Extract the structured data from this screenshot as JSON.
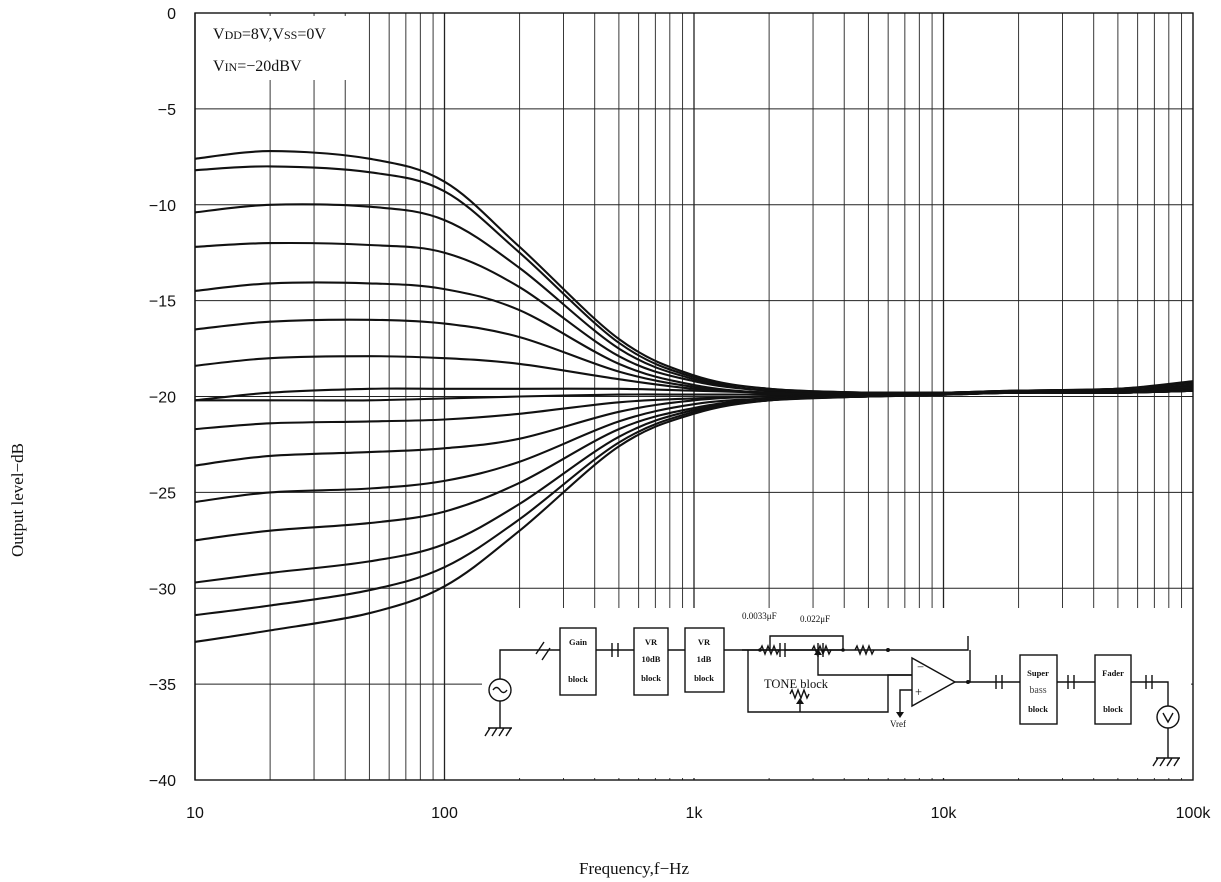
{
  "chart_data": {
    "type": "line",
    "title": "",
    "xlabel": "Frequency,f−Hz",
    "ylabel": "Output level−dB",
    "xscale": "log",
    "xlim": [
      10,
      100000
    ],
    "ylim": [
      -40,
      0
    ],
    "x_ticks": [
      "10",
      "100",
      "1k",
      "10k",
      "100k"
    ],
    "y_ticks": [
      "0",
      "−5",
      "−10",
      "−15",
      "−20",
      "−25",
      "−30",
      "−35",
      "−40"
    ],
    "grid": true,
    "annotations": {
      "vdd_prefix": "V",
      "vdd_sub": "DD",
      "vdd_mid": "=8V,V",
      "vss_sub": "SS",
      "vss_suffix": "=0V",
      "vin_prefix": "V",
      "vin_sub": "IN",
      "vin_suffix": "=−20dBV"
    },
    "x": [
      10,
      20,
      50,
      100,
      200,
      500,
      1000,
      2000,
      5000,
      10000,
      20000,
      50000,
      100000
    ],
    "series": [
      {
        "values": [
          -7.6,
          -7.2,
          -7.6,
          -8.8,
          -12.2,
          -17.0,
          -18.9,
          -19.6,
          -19.8,
          -19.8,
          -19.7,
          -19.6,
          -19.2
        ]
      },
      {
        "values": [
          -8.2,
          -8.0,
          -8.3,
          -9.3,
          -12.5,
          -17.2,
          -19.0,
          -19.6,
          -19.8,
          -19.8,
          -19.7,
          -19.6,
          -19.3
        ]
      },
      {
        "values": [
          -10.4,
          -10.0,
          -10.1,
          -10.8,
          -13.3,
          -17.5,
          -19.1,
          -19.7,
          -19.8,
          -19.8,
          -19.7,
          -19.6,
          -19.3
        ]
      },
      {
        "values": [
          -12.2,
          -12.0,
          -12.1,
          -12.5,
          -14.3,
          -17.9,
          -19.2,
          -19.7,
          -19.8,
          -19.8,
          -19.7,
          -19.7,
          -19.4
        ]
      },
      {
        "values": [
          -14.5,
          -14.1,
          -14.1,
          -14.4,
          -15.5,
          -18.3,
          -19.4,
          -19.8,
          -19.8,
          -19.8,
          -19.7,
          -19.7,
          -19.4
        ]
      },
      {
        "values": [
          -16.5,
          -16.1,
          -16.0,
          -16.2,
          -16.9,
          -18.7,
          -19.5,
          -19.8,
          -19.8,
          -19.8,
          -19.8,
          -19.7,
          -19.5
        ]
      },
      {
        "values": [
          -18.4,
          -18.0,
          -17.9,
          -18.0,
          -18.3,
          -19.1,
          -19.6,
          -19.8,
          -19.9,
          -19.8,
          -19.8,
          -19.7,
          -19.5
        ]
      },
      {
        "values": [
          -20.2,
          -19.8,
          -19.6,
          -19.6,
          -19.6,
          -19.6,
          -19.7,
          -19.8,
          -19.9,
          -19.8,
          -19.8,
          -19.7,
          -19.5
        ]
      },
      {
        "values": [
          -20.2,
          -20.2,
          -20.2,
          -20.1,
          -20.0,
          -19.9,
          -19.9,
          -19.9,
          -19.9,
          -19.9,
          -19.8,
          -19.8,
          -19.6
        ]
      },
      {
        "values": [
          -21.7,
          -21.4,
          -21.3,
          -21.2,
          -20.9,
          -20.3,
          -20.1,
          -20.0,
          -19.9,
          -19.9,
          -19.8,
          -19.8,
          -19.6
        ]
      },
      {
        "values": [
          -23.6,
          -23.1,
          -22.9,
          -22.7,
          -22.2,
          -20.8,
          -20.2,
          -20.0,
          -20.0,
          -19.9,
          -19.8,
          -19.8,
          -19.7
        ]
      },
      {
        "values": [
          -25.5,
          -25.0,
          -24.8,
          -24.4,
          -23.4,
          -21.3,
          -20.4,
          -20.1,
          -20.0,
          -19.9,
          -19.8,
          -19.8,
          -19.7
        ]
      },
      {
        "values": [
          -27.5,
          -27.0,
          -26.6,
          -26.0,
          -24.5,
          -21.7,
          -20.6,
          -20.1,
          -20.0,
          -19.9,
          -19.8,
          -19.8,
          -19.7
        ]
      },
      {
        "values": [
          -29.7,
          -29.2,
          -28.6,
          -27.7,
          -25.6,
          -22.1,
          -20.7,
          -20.2,
          -20.0,
          -19.9,
          -19.8,
          -19.8,
          -19.7
        ]
      },
      {
        "values": [
          -31.4,
          -30.9,
          -30.1,
          -28.9,
          -26.4,
          -22.4,
          -20.8,
          -20.2,
          -20.0,
          -19.9,
          -19.8,
          -19.8,
          -19.7
        ]
      },
      {
        "values": [
          -32.8,
          -32.2,
          -31.3,
          -29.9,
          -27.0,
          -22.6,
          -20.9,
          -20.2,
          -20.0,
          -19.9,
          -19.8,
          -19.8,
          -19.7
        ]
      }
    ],
    "inset": {
      "blocks": [
        {
          "line1": "Gain",
          "line2": "block"
        },
        {
          "line1": "VR",
          "line2": "10dB",
          "line3": "block"
        },
        {
          "line1": "VR",
          "line2": "1dB",
          "line3": "block"
        },
        {
          "line1": "Super",
          "line2": "bass",
          "line3": "block"
        },
        {
          "line1": "Fader",
          "line2": "block"
        }
      ],
      "cap1": "0.0033μF",
      "cap2": "0.022μF",
      "tone_label": "TONE block",
      "vref_label": "Vref"
    }
  }
}
